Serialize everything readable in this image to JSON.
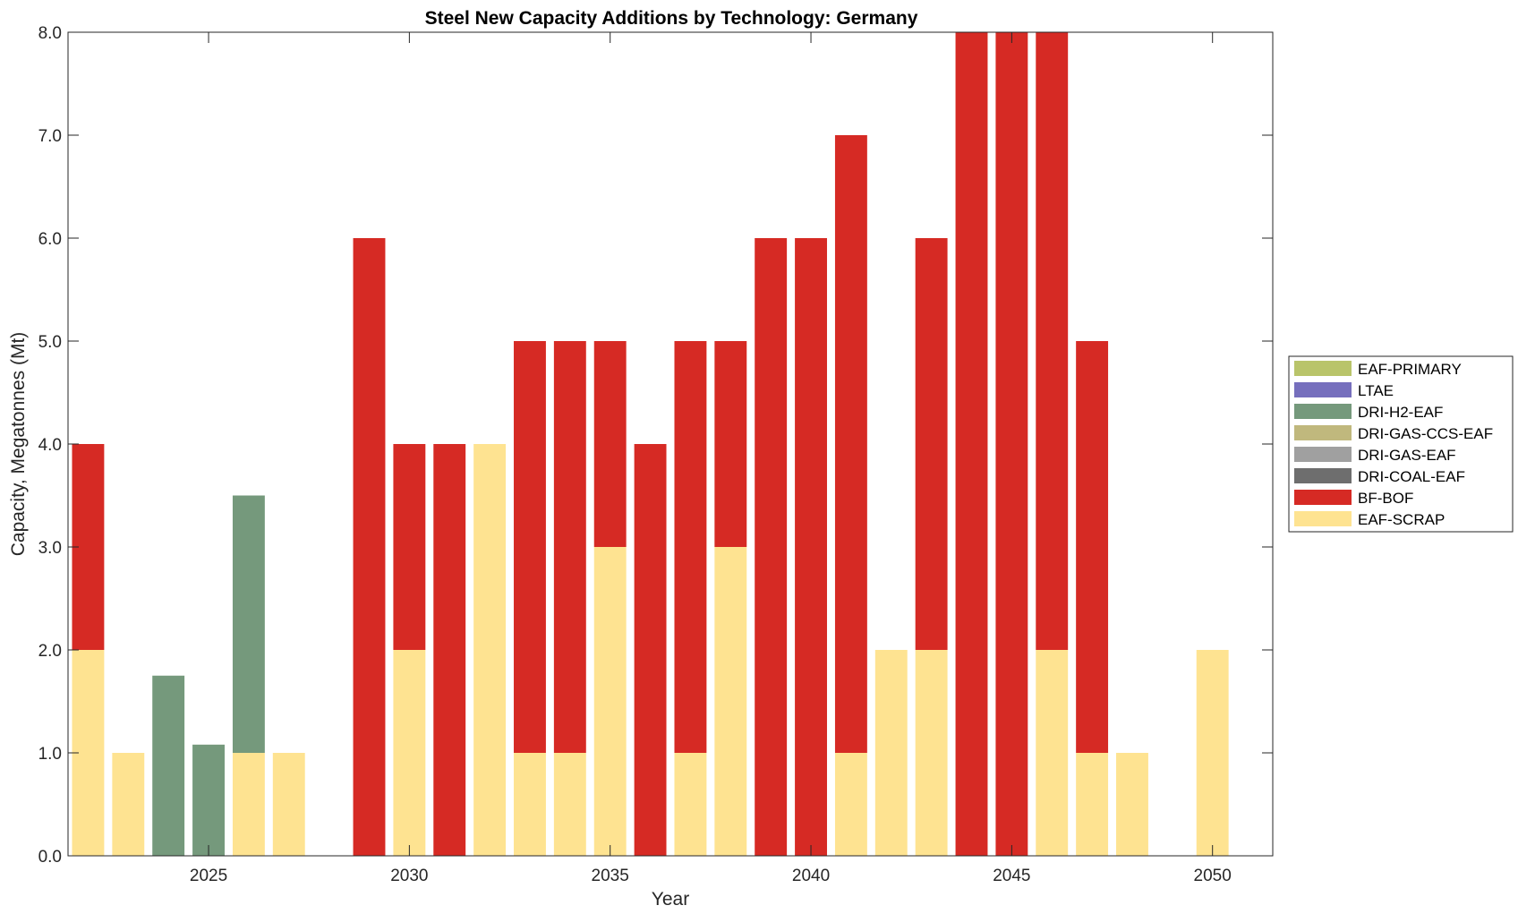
{
  "chart_data": {
    "type": "bar",
    "stacked": true,
    "title": "Steel New Capacity Additions by Technology: Germany",
    "xlabel": "Year",
    "ylabel": "Capacity, Megatonnes (Mt)",
    "xlim": [
      2021.5,
      2051.5
    ],
    "ylim": [
      0,
      8
    ],
    "xticks": [
      2025,
      2030,
      2035,
      2040,
      2045,
      2050
    ],
    "yticks": [
      0,
      1,
      2,
      3,
      4,
      5,
      6,
      7,
      8
    ],
    "ytick_labels": [
      "0.0",
      "1.0",
      "2.0",
      "3.0",
      "4.0",
      "5.0",
      "6.0",
      "7.0",
      "8.0"
    ],
    "legend_position": "right",
    "x": [
      2022,
      2023,
      2024,
      2025,
      2026,
      2027,
      2028,
      2029,
      2030,
      2031,
      2032,
      2033,
      2034,
      2035,
      2036,
      2037,
      2038,
      2039,
      2040,
      2041,
      2042,
      2043,
      2044,
      2045,
      2046,
      2047,
      2048,
      2049,
      2050
    ],
    "series": [
      {
        "name": "EAF-SCRAP",
        "color": "#fee391",
        "values": [
          2,
          1,
          0,
          0,
          1,
          1,
          0,
          0,
          2,
          0,
          4,
          1,
          1,
          3,
          0,
          1,
          3,
          0,
          0,
          1,
          2,
          2,
          0,
          0,
          2,
          1,
          1,
          0,
          2
        ]
      },
      {
        "name": "BF-BOF",
        "color": "#d62a24",
        "values": [
          2,
          0,
          0,
          0,
          0,
          0,
          0,
          6,
          2,
          4,
          0,
          4,
          4,
          2,
          4,
          4,
          2,
          6,
          6,
          6,
          0,
          4,
          8,
          8,
          6,
          4,
          0,
          0,
          0
        ]
      },
      {
        "name": "DRI-COAL-EAF",
        "color": "#6e6e6e",
        "values": [
          0,
          0,
          0,
          0,
          0,
          0,
          0,
          0,
          0,
          0,
          0,
          0,
          0,
          0,
          0,
          0,
          0,
          0,
          0,
          0,
          0,
          0,
          0,
          0,
          0,
          0,
          0,
          0,
          0
        ]
      },
      {
        "name": "DRI-GAS-EAF",
        "color": "#a0a0a0",
        "values": [
          0,
          0,
          0,
          0,
          0,
          0,
          0,
          0,
          0,
          0,
          0,
          0,
          0,
          0,
          0,
          0,
          0,
          0,
          0,
          0,
          0,
          0,
          0,
          0,
          0,
          0,
          0,
          0,
          0
        ]
      },
      {
        "name": "DRI-GAS-CCS-EAF",
        "color": "#c0b87d",
        "values": [
          0,
          0,
          0,
          0,
          0,
          0,
          0,
          0,
          0,
          0,
          0,
          0,
          0,
          0,
          0,
          0,
          0,
          0,
          0,
          0,
          0,
          0,
          0,
          0,
          0,
          0,
          0,
          0,
          0
        ]
      },
      {
        "name": "DRI-H2-EAF",
        "color": "#75997c",
        "values": [
          0,
          0,
          1.75,
          1.08,
          2.5,
          0,
          0,
          0,
          0,
          0,
          0,
          0,
          0,
          0,
          0,
          0,
          0,
          0,
          0,
          0,
          0,
          0,
          0,
          0,
          0,
          0,
          0,
          0,
          0
        ]
      },
      {
        "name": "LTAE",
        "color": "#766fbd",
        "values": [
          0,
          0,
          0,
          0,
          0,
          0,
          0,
          0,
          0,
          0,
          0,
          0,
          0,
          0,
          0,
          0,
          0,
          0,
          0,
          0,
          0,
          0,
          0,
          0,
          0,
          0,
          0,
          0,
          0
        ]
      },
      {
        "name": "EAF-PRIMARY",
        "color": "#b9c46a",
        "values": [
          0,
          0,
          0,
          0,
          0,
          0,
          0,
          0,
          0,
          0,
          0,
          0,
          0,
          0,
          0,
          0,
          0,
          0,
          0,
          0,
          0,
          0,
          0,
          0,
          0,
          0,
          0,
          0,
          0
        ]
      }
    ],
    "legend_order": [
      "EAF-PRIMARY",
      "LTAE",
      "DRI-H2-EAF",
      "DRI-GAS-CCS-EAF",
      "DRI-GAS-EAF",
      "DRI-COAL-EAF",
      "BF-BOF",
      "EAF-SCRAP"
    ]
  }
}
